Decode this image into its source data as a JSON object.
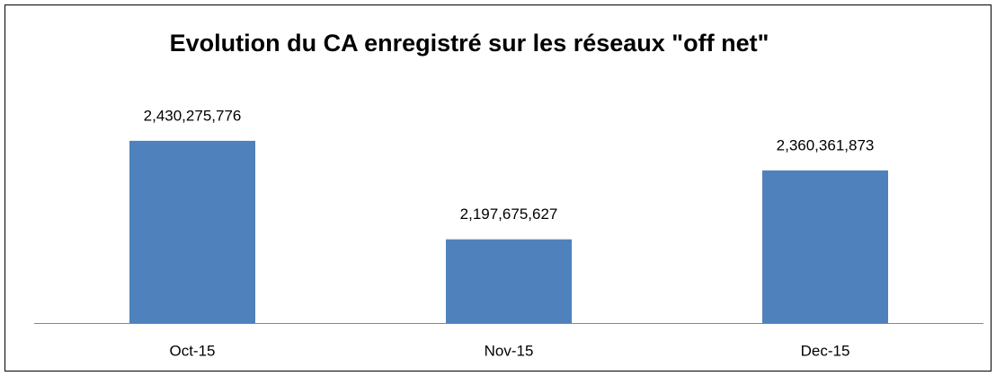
{
  "chart_data": {
    "type": "bar",
    "title": "Evolution du CA enregistré sur les réseaux \"off net\"",
    "categories": [
      "Oct-15",
      "Nov-15",
      "Dec-15"
    ],
    "values": [
      2430275776,
      2197675627,
      2360361873
    ],
    "value_labels": [
      "2,430,275,776",
      "2,197,675,627",
      "2,360,361,873"
    ],
    "color": "#4f81bd",
    "ylim": [
      2000000000,
      2500000000
    ]
  }
}
